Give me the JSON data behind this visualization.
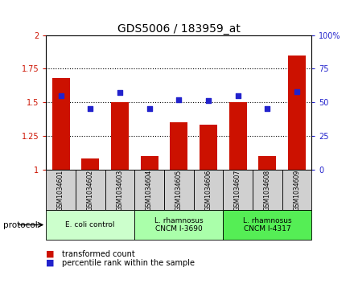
{
  "title": "GDS5006 / 183959_at",
  "samples": [
    "GSM1034601",
    "GSM1034602",
    "GSM1034603",
    "GSM1034604",
    "GSM1034605",
    "GSM1034606",
    "GSM1034607",
    "GSM1034608",
    "GSM1034609"
  ],
  "transformed_count": [
    1.68,
    1.08,
    1.5,
    1.1,
    1.35,
    1.33,
    1.5,
    1.1,
    1.85
  ],
  "percentile_rank": [
    55,
    45,
    57,
    45,
    52,
    51,
    55,
    45,
    58
  ],
  "ylim_left": [
    1.0,
    2.0
  ],
  "ylim_right": [
    0,
    100
  ],
  "yticks_left": [
    1.0,
    1.25,
    1.5,
    1.75,
    2.0
  ],
  "yticks_right": [
    0,
    25,
    50,
    75,
    100
  ],
  "ytick_labels_left": [
    "1",
    "1.25",
    "1.5",
    "1.75",
    "2"
  ],
  "ytick_labels_right": [
    "0",
    "25",
    "50",
    "75",
    "100%"
  ],
  "bar_color": "#cc1100",
  "dot_color": "#2222cc",
  "group_colors": [
    "#ccffcc",
    "#aaffaa",
    "#55ee55"
  ],
  "groups": [
    {
      "label": "E. coli control",
      "start": 0,
      "end": 3
    },
    {
      "label": "L. rhamnosus\nCNCM I-3690",
      "start": 3,
      "end": 6
    },
    {
      "label": "L. rhamnosus\nCNCM I-4317",
      "start": 6,
      "end": 9
    }
  ],
  "protocol_label": "protocol",
  "legend_bar_label": "transformed count",
  "legend_dot_label": "percentile rank within the sample",
  "title_fontsize": 10,
  "tick_fontsize": 7,
  "sample_fontsize": 5.5,
  "group_fontsize": 6.5,
  "legend_fontsize": 7,
  "protocol_fontsize": 7.5
}
